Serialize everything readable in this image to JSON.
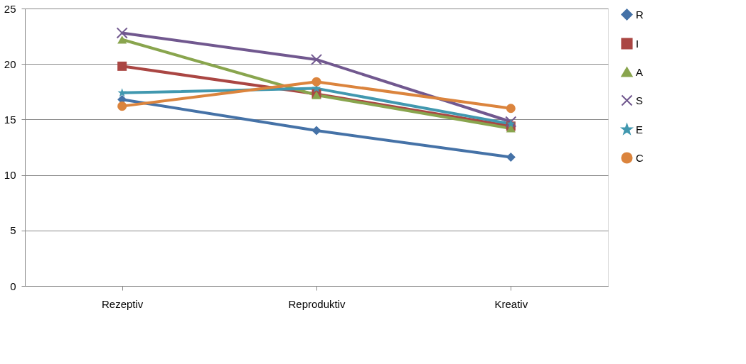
{
  "chart_data": {
    "type": "line",
    "categories": [
      "Rezeptiv",
      "Reproduktiv",
      "Kreativ"
    ],
    "series": [
      {
        "name": "R",
        "color": "#4572a7",
        "marker": "diamond",
        "values": [
          16.8,
          14.0,
          11.6
        ]
      },
      {
        "name": "I",
        "color": "#aa4643",
        "marker": "square",
        "values": [
          19.8,
          17.3,
          14.4
        ]
      },
      {
        "name": "A",
        "color": "#89a54e",
        "marker": "triangle",
        "values": [
          22.2,
          17.2,
          14.2
        ]
      },
      {
        "name": "S",
        "color": "#71588f",
        "marker": "cross",
        "values": [
          22.8,
          20.4,
          14.8
        ]
      },
      {
        "name": "E",
        "color": "#4198af",
        "marker": "star",
        "values": [
          17.4,
          17.8,
          14.6
        ]
      },
      {
        "name": "C",
        "color": "#db843d",
        "marker": "circle",
        "values": [
          16.2,
          18.4,
          16.0
        ]
      }
    ],
    "ylim": [
      0,
      25
    ],
    "yticks": [
      0,
      5,
      10,
      15,
      20,
      25
    ],
    "grid": "y",
    "legend": "right"
  }
}
